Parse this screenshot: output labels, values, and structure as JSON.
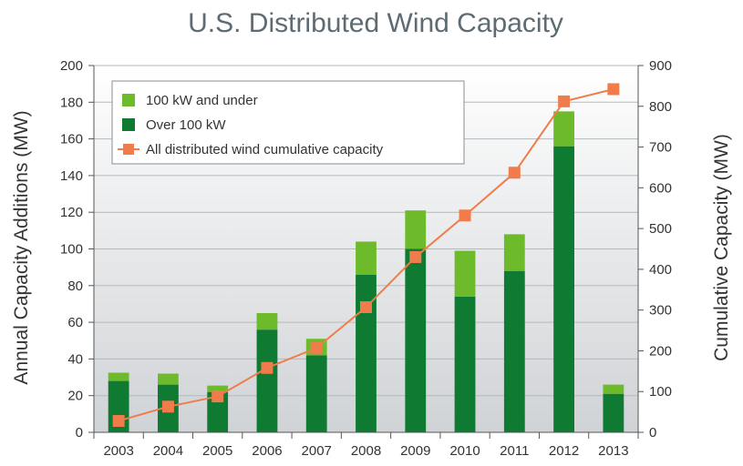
{
  "chart_data": {
    "type": "bar+line",
    "title": "U.S. Distributed Wind Capacity",
    "ylabel_left": "Annual Capacity Additions (MW)",
    "ylabel_right": "Cumulative Capacity (MW)",
    "xlabel": "",
    "categories": [
      "2003",
      "2004",
      "2005",
      "2006",
      "2007",
      "2008",
      "2009",
      "2010",
      "2011",
      "2012",
      "2013"
    ],
    "ylim_left": [
      0,
      200
    ],
    "yticks_left": [
      0,
      20,
      40,
      60,
      80,
      100,
      120,
      140,
      160,
      180,
      200
    ],
    "ylim_right": [
      0,
      900
    ],
    "yticks_right": [
      0,
      100,
      200,
      300,
      400,
      500,
      600,
      700,
      800,
      900
    ],
    "series": [
      {
        "name": "Over 100 kW",
        "kind": "bar",
        "axis": "left",
        "color": "#0f7a32",
        "values": [
          28,
          26,
          22,
          56,
          42,
          86,
          100,
          74,
          88,
          156,
          21
        ]
      },
      {
        "name": "100 kW and under",
        "kind": "bar",
        "axis": "left",
        "color": "#6dbb2b",
        "values": [
          4.5,
          6,
          3.5,
          9,
          9,
          18,
          21,
          25,
          20,
          19,
          5
        ]
      },
      {
        "name": "All distributed wind cumulative capacity",
        "kind": "line",
        "axis": "right",
        "color": "#f07c4b",
        "values": [
          28,
          63,
          88,
          158,
          207,
          307,
          430,
          532,
          637,
          812,
          842
        ]
      }
    ],
    "legend_order": [
      "100 kW and under",
      "Over 100 kW",
      "All distributed wind cumulative capacity"
    ],
    "legend_position": "top-left",
    "grid": true
  }
}
